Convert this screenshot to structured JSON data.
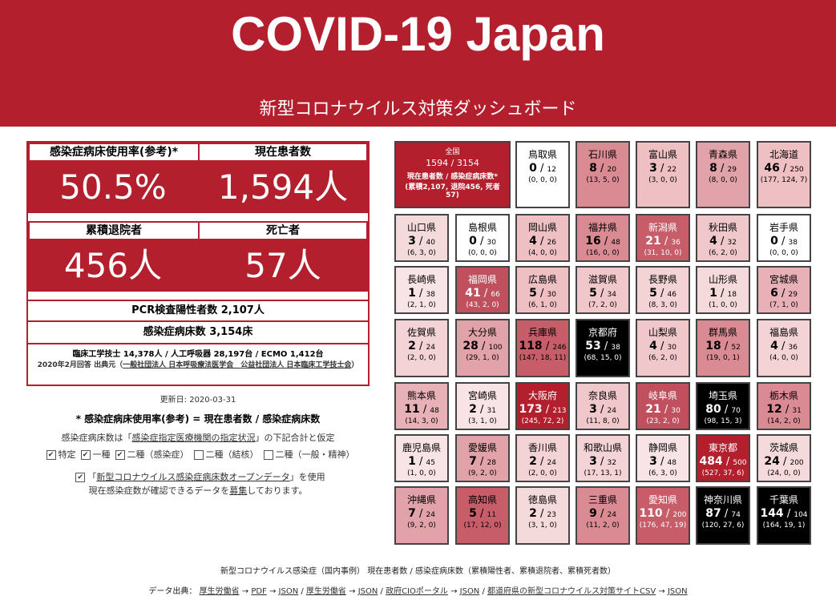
{
  "header": {
    "title": "COVID-19 Japan",
    "subtitle": "新型コロナウイルス対策ダッシュボード"
  },
  "stats": {
    "occupancy_label": "感染症病床使用率(参考)*",
    "occupancy_value": "50.5%",
    "patients_label": "現在患者数",
    "patients_value": "1,594人",
    "recovered_label": "累積退院者",
    "recovered_value": "456人",
    "deaths_label": "死亡者",
    "deaths_value": "57人",
    "pcr": "PCR検査陽性者数 2,107人",
    "beds": "感染症病床数 3,154床",
    "equipment": "臨床工学技士 14,378人 / 人工呼吸器 28,197台 / ECMO 1,412台",
    "equipment_source_prefix": "2020年2月回答 出典元（",
    "equipment_source_link": "一般社団法人 日本呼吸療法医学会　公益社団法人 日本臨床工学技士会",
    "equipment_source_suffix": "）"
  },
  "info": {
    "updated": "更新日: 2020-03-31",
    "formula": "* 感染症病床使用率(参考) = 現在患者数 / 感染症病床数",
    "bed_note_prefix": "感染症病床数は「",
    "bed_note_link": "感染症指定医療機関の指定状況",
    "bed_note_suffix": "」の下記合計と仮定",
    "checkbox_labels": [
      "特定",
      "一種",
      "二種（感染症）",
      "二種（結核）",
      "二種（一般・精神）"
    ],
    "checkbox_states": [
      true,
      true,
      true,
      false,
      false
    ],
    "opendata_prefix": "「",
    "opendata_link": "新型コロナウイルス感染症病床数オープンデータ",
    "opendata_suffix": "」を使用",
    "recruit_prefix": "現在感染症数が確認できるデータを",
    "recruit_link": "募集",
    "recruit_suffix": "しております。"
  },
  "national": {
    "label": "全国",
    "value": "1594 / 3154",
    "desc": "現在患者数 / 感染症病床数*",
    "detail": "(累積2,107, 退院456, 死者57)"
  },
  "prefectures": [
    {
      "name": "鳥取県",
      "cur": "0",
      "beds": "12",
      "detail": "(0, 0, 0)",
      "bg": "#ffffff",
      "fg": "#000000"
    },
    {
      "name": "石川県",
      "cur": "8",
      "beds": "20",
      "detail": "(13, 5, 0)",
      "bg": "#d98a93",
      "fg": "#000000"
    },
    {
      "name": "富山県",
      "cur": "3",
      "beds": "22",
      "detail": "(3, 0, 0)",
      "bg": "#eebfc3",
      "fg": "#000000"
    },
    {
      "name": "青森県",
      "cur": "8",
      "beds": "29",
      "detail": "(8, 0, 0)",
      "bg": "#e1a2a9",
      "fg": "#000000"
    },
    {
      "name": "北海道",
      "cur": "46",
      "beds": "250",
      "detail": "(177, 124, 7)",
      "bg": "#eebfc3",
      "fg": "#000000"
    },
    {
      "name": "山口県",
      "cur": "3",
      "beds": "40",
      "detail": "(6, 3, 0)",
      "bg": "#f5dadc",
      "fg": "#000000"
    },
    {
      "name": "島根県",
      "cur": "0",
      "beds": "30",
      "detail": "(0, 0, 0)",
      "bg": "#ffffff",
      "fg": "#000000"
    },
    {
      "name": "岡山県",
      "cur": "4",
      "beds": "26",
      "detail": "(4, 0, 0)",
      "bg": "#eebfc3",
      "fg": "#000000"
    },
    {
      "name": "福井県",
      "cur": "16",
      "beds": "48",
      "detail": "(16, 0, 0)",
      "bg": "#d98a93",
      "fg": "#000000"
    },
    {
      "name": "新潟県",
      "cur": "21",
      "beds": "36",
      "detail": "(31, 10, 0)",
      "bg": "#c75d69",
      "fg": "#ffffff"
    },
    {
      "name": "秋田県",
      "cur": "4",
      "beds": "32",
      "detail": "(6, 2, 0)",
      "bg": "#f0c8cc",
      "fg": "#000000"
    },
    {
      "name": "岩手県",
      "cur": "0",
      "beds": "38",
      "detail": "(0, 0, 0)",
      "bg": "#ffffff",
      "fg": "#000000"
    },
    {
      "name": "長崎県",
      "cur": "1",
      "beds": "38",
      "detail": "(2, 1, 0)",
      "bg": "#f8e4e6",
      "fg": "#000000"
    },
    {
      "name": "福岡県",
      "cur": "41",
      "beds": "66",
      "detail": "(43, 2, 0)",
      "bg": "#c0505d",
      "fg": "#ffffff"
    },
    {
      "name": "広島県",
      "cur": "5",
      "beds": "30",
      "detail": "(6, 1, 0)",
      "bg": "#eebfc3",
      "fg": "#000000"
    },
    {
      "name": "滋賀県",
      "cur": "5",
      "beds": "34",
      "detail": "(7, 2, 0)",
      "bg": "#f0c8cc",
      "fg": "#000000"
    },
    {
      "name": "長野県",
      "cur": "5",
      "beds": "46",
      "detail": "(8, 3, 0)",
      "bg": "#f3d3d6",
      "fg": "#000000"
    },
    {
      "name": "山形県",
      "cur": "1",
      "beds": "18",
      "detail": "(1, 0, 0)",
      "bg": "#f5dadc",
      "fg": "#000000"
    },
    {
      "name": "宮城県",
      "cur": "6",
      "beds": "29",
      "detail": "(7, 1, 0)",
      "bg": "#e8b1b7",
      "fg": "#000000"
    },
    {
      "name": "佐賀県",
      "cur": "2",
      "beds": "24",
      "detail": "(2, 0, 0)",
      "bg": "#f3d3d6",
      "fg": "#000000"
    },
    {
      "name": "大分県",
      "cur": "28",
      "beds": "100",
      "detail": "(29, 1, 0)",
      "bg": "#e1a2a9",
      "fg": "#000000"
    },
    {
      "name": "兵庫県",
      "cur": "118",
      "beds": "246",
      "detail": "(147, 18, 11)",
      "bg": "#c75d69",
      "fg": "#000000"
    },
    {
      "name": "京都府",
      "cur": "53",
      "beds": "38",
      "detail": "(68, 15, 0)",
      "bg": "#000000",
      "fg": "#ffffff"
    },
    {
      "name": "山梨県",
      "cur": "4",
      "beds": "30",
      "detail": "(6, 2, 0)",
      "bg": "#f0c8cc",
      "fg": "#000000"
    },
    {
      "name": "群馬県",
      "cur": "18",
      "beds": "52",
      "detail": "(19, 0, 1)",
      "bg": "#d98a93",
      "fg": "#000000"
    },
    {
      "name": "福島県",
      "cur": "4",
      "beds": "36",
      "detail": "(4, 0, 0)",
      "bg": "#f3d3d6",
      "fg": "#000000"
    },
    {
      "name": "熊本県",
      "cur": "11",
      "beds": "48",
      "detail": "(14, 3, 0)",
      "bg": "#e8b1b7",
      "fg": "#000000"
    },
    {
      "name": "宮崎県",
      "cur": "2",
      "beds": "31",
      "detail": "(3, 1, 0)",
      "bg": "#f8e4e6",
      "fg": "#000000"
    },
    {
      "name": "大阪府",
      "cur": "173",
      "beds": "213",
      "detail": "(245, 72, 2)",
      "bg": "#b41f2e",
      "fg": "#ffffff"
    },
    {
      "name": "奈良県",
      "cur": "3",
      "beds": "24",
      "detail": "(11, 8, 0)",
      "bg": "#f0c8cc",
      "fg": "#000000"
    },
    {
      "name": "岐阜県",
      "cur": "21",
      "beds": "30",
      "detail": "(23, 2, 0)",
      "bg": "#c0505d",
      "fg": "#ffffff"
    },
    {
      "name": "埼玉県",
      "cur": "80",
      "beds": "70",
      "detail": "(98, 15, 3)",
      "bg": "#000000",
      "fg": "#ffffff"
    },
    {
      "name": "栃木県",
      "cur": "12",
      "beds": "31",
      "detail": "(14, 2, 0)",
      "bg": "#d98a93",
      "fg": "#000000"
    },
    {
      "name": "鹿児島県",
      "cur": "1",
      "beds": "45",
      "detail": "(1, 0, 0)",
      "bg": "#f8e4e6",
      "fg": "#000000"
    },
    {
      "name": "愛媛県",
      "cur": "7",
      "beds": "28",
      "detail": "(9, 2, 0)",
      "bg": "#e1a2a9",
      "fg": "#000000"
    },
    {
      "name": "香川県",
      "cur": "2",
      "beds": "24",
      "detail": "(2, 0, 0)",
      "bg": "#f3d3d6",
      "fg": "#000000"
    },
    {
      "name": "和歌山県",
      "cur": "3",
      "beds": "32",
      "detail": "(17, 13, 1)",
      "bg": "#f3d3d6",
      "fg": "#000000"
    },
    {
      "name": "静岡県",
      "cur": "3",
      "beds": "48",
      "detail": "(6, 3, 0)",
      "bg": "#f8e4e6",
      "fg": "#000000"
    },
    {
      "name": "東京都",
      "cur": "484",
      "beds": "500",
      "detail": "(527, 37, 6)",
      "bg": "#b41f2e",
      "fg": "#ffffff"
    },
    {
      "name": "茨城県",
      "cur": "24",
      "beds": "200",
      "detail": "(24, 0, 0)",
      "bg": "#f5dadc",
      "fg": "#000000"
    },
    {
      "name": "沖縄県",
      "cur": "7",
      "beds": "24",
      "detail": "(9, 2, 0)",
      "bg": "#e1a2a9",
      "fg": "#000000"
    },
    {
      "name": "高知県",
      "cur": "5",
      "beds": "11",
      "detail": "(17, 12, 0)",
      "bg": "#c75d69",
      "fg": "#000000"
    },
    {
      "name": "徳島県",
      "cur": "2",
      "beds": "23",
      "detail": "(3, 1, 0)",
      "bg": "#f5dadc",
      "fg": "#000000"
    },
    {
      "name": "三重県",
      "cur": "9",
      "beds": "24",
      "detail": "(11, 2, 0)",
      "bg": "#d98a93",
      "fg": "#000000"
    },
    {
      "name": "愛知県",
      "cur": "110",
      "beds": "200",
      "detail": "(176, 47, 19)",
      "bg": "#c75d69",
      "fg": "#ffffff"
    },
    {
      "name": "神奈川県",
      "cur": "87",
      "beds": "74",
      "detail": "(120, 27, 6)",
      "bg": "#000000",
      "fg": "#ffffff"
    },
    {
      "name": "千葉県",
      "cur": "144",
      "beds": "104",
      "detail": "(164, 19, 1)",
      "bg": "#000000",
      "fg": "#ffffff"
    }
  ],
  "footer": {
    "caption": "新型コロナウイルス感染症（国内事例） 現在患者数 / 感染症病床数（累積陽性者、累積退院者、累積死者数）",
    "source_label": "データ出典：",
    "links": [
      "厚生労働省",
      "PDF",
      "JSON",
      "厚生労働省",
      "JSON",
      "政府CIOポータル",
      "JSON",
      "都道府県の新型コロナウイルス対策サイトCSV",
      "JSON"
    ],
    "separators": [
      " → ",
      " → ",
      " / ",
      " → ",
      " / ",
      " → ",
      " / ",
      " → "
    ]
  }
}
